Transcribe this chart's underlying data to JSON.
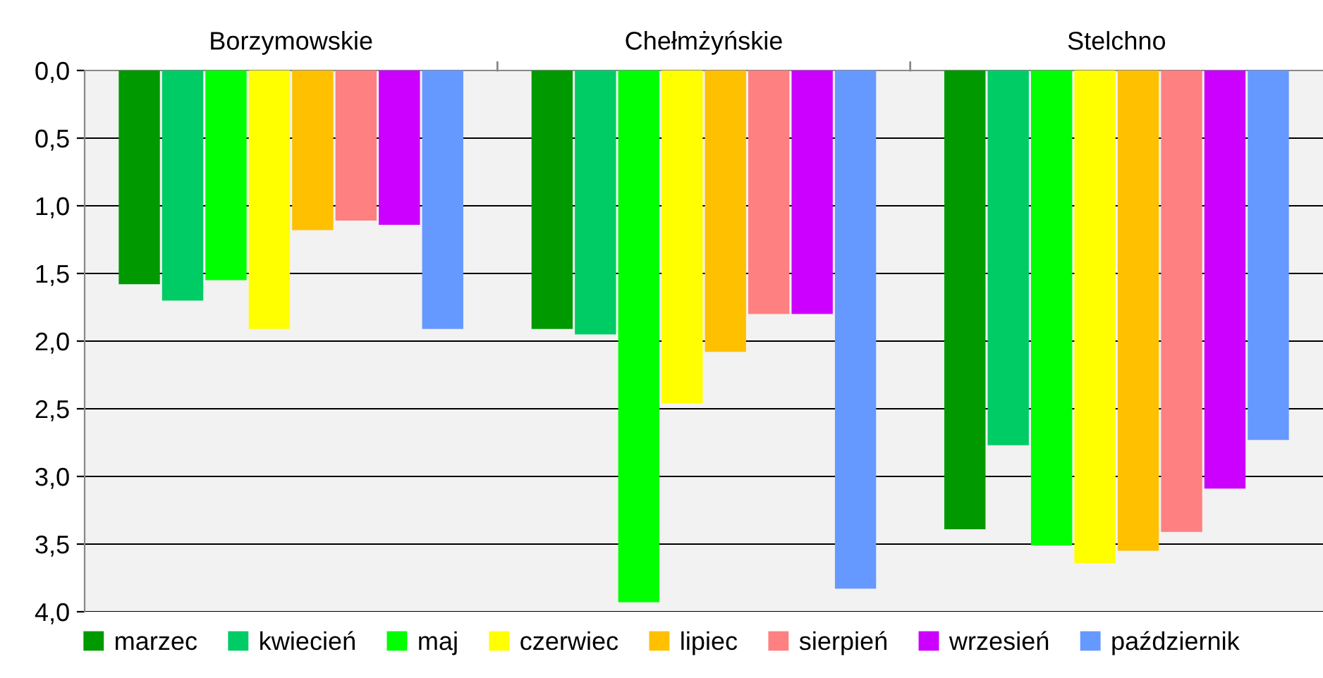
{
  "chart_data": {
    "type": "bar",
    "categories": [
      "Borzymowskie",
      "Chełmżyńskie",
      "Stelchno"
    ],
    "series": [
      {
        "name": "marzec",
        "color": "#009900",
        "values": [
          1.58,
          1.91,
          3.39
        ]
      },
      {
        "name": "kwiecień",
        "color": "#00cc66",
        "values": [
          1.7,
          1.95,
          2.77
        ]
      },
      {
        "name": "maj",
        "color": "#00ff00",
        "values": [
          1.55,
          3.93,
          3.51
        ]
      },
      {
        "name": "czerwiec",
        "color": "#ffff00",
        "values": [
          1.91,
          2.46,
          3.64
        ]
      },
      {
        "name": "lipiec",
        "color": "#ffc000",
        "values": [
          1.18,
          2.08,
          3.55
        ]
      },
      {
        "name": "sierpień",
        "color": "#ff8080",
        "values": [
          1.11,
          1.8,
          3.41
        ]
      },
      {
        "name": "wrzesień",
        "color": "#cc00ff",
        "values": [
          1.14,
          1.8,
          3.09
        ]
      },
      {
        "name": "październik",
        "color": "#6699ff",
        "values": [
          1.91,
          3.83,
          2.73
        ]
      }
    ],
    "ylim": [
      4.0,
      0.0
    ],
    "yticks": [
      {
        "value": 0,
        "label": "0,0"
      },
      {
        "value": 0.5,
        "label": "0,5"
      },
      {
        "value": 1,
        "label": "1,0"
      },
      {
        "value": 1.5,
        "label": "1,5"
      },
      {
        "value": 2,
        "label": "2,0"
      },
      {
        "value": 2.5,
        "label": "2,5"
      },
      {
        "value": 3,
        "label": "3,0"
      },
      {
        "value": 3.5,
        "label": "3,5"
      },
      {
        "value": 4,
        "label": "4,0"
      }
    ],
    "grid": "y",
    "legend": "bottom"
  }
}
